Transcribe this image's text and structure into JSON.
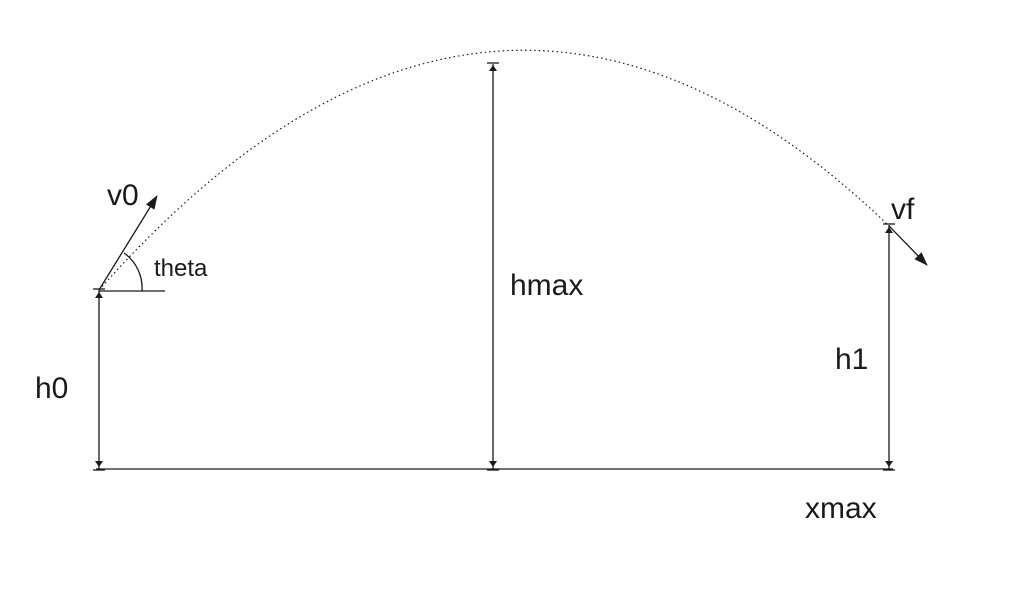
{
  "labels": {
    "v0": "v0",
    "theta": "theta",
    "hmax": "hmax",
    "vf": "vf",
    "h0": "h0",
    "h1": "h1",
    "xmax": "xmax"
  },
  "colors": {
    "ink": "#1a1a1a",
    "background": "#ffffff"
  }
}
